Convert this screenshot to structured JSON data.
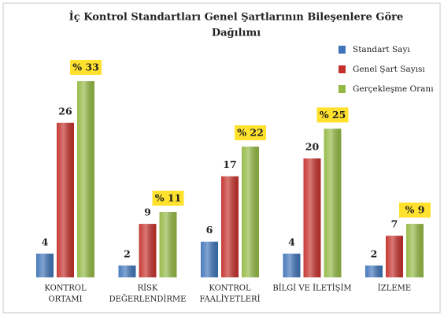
{
  "chart_data": {
    "type": "bar",
    "title": [
      "İç Kontrol Standartları Genel Şartlarının Bileşenlere Göre",
      "Dağılımı"
    ],
    "categories": [
      [
        "KONTROL",
        "ORTAMI"
      ],
      [
        "RİSK",
        "DEĞERLENDİRME"
      ],
      [
        "KONTROL",
        "FAALİYETLERİ"
      ],
      [
        "BİLGİ VE İLETİŞİM"
      ],
      [
        "İZLEME"
      ]
    ],
    "series": [
      {
        "name": "Standart Sayı",
        "color": "#3f74b8",
        "values": [
          4,
          2,
          6,
          4,
          2
        ]
      },
      {
        "name": "Genel Şart Sayısı",
        "color": "#c4302b",
        "values": [
          26,
          9,
          17,
          20,
          7
        ]
      },
      {
        "name": "Gerçekleşme Oranı",
        "color": "#93b844",
        "values": [
          33,
          11,
          22,
          25,
          9
        ],
        "value_labels": [
          "% 33",
          "% 11",
          "% 22",
          "% 25",
          "% 9"
        ]
      }
    ],
    "legend": "top-right"
  }
}
